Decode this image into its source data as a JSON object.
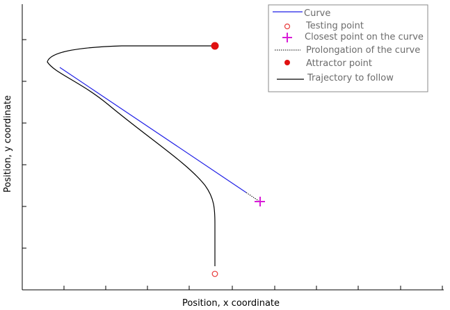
{
  "figure": {
    "xlabel": "Position, x coordinate",
    "ylabel": "Position, y coordinate",
    "colors": {
      "curve": "#1f1fe6",
      "testing_point": "#e83a3a",
      "closest_point": "#d81bd8",
      "attractor": "#e01010",
      "trajectory": "#000000",
      "legend_text": "#6b6b6b",
      "axis": "#000000"
    }
  },
  "legend": {
    "items": [
      {
        "label": "Curve",
        "marker": "blue-line"
      },
      {
        "label": "Testing point",
        "marker": "open-circle"
      },
      {
        "label": "Closest point on the curve",
        "marker": "plus"
      },
      {
        "label": "Prolongation of the curve",
        "marker": "dotted-line"
      },
      {
        "label": "Attractor point",
        "marker": "filled-dot"
      },
      {
        "label": "Trajectory to follow",
        "marker": "black-line"
      }
    ]
  }
}
